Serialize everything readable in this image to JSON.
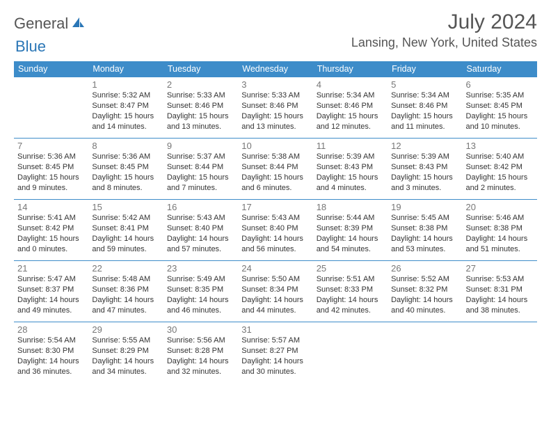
{
  "brand": {
    "part1": "General",
    "part2": "Blue"
  },
  "title": "July 2024",
  "location": "Lansing, New York, United States",
  "colors": {
    "header_bg": "#3d8cc9",
    "header_text": "#ffffff",
    "border": "#3d8cc9",
    "daynum": "#777777",
    "body_text": "#333333",
    "brand_gray": "#555555",
    "brand_blue": "#2a76b6",
    "background": "#ffffff"
  },
  "weekdays": [
    "Sunday",
    "Monday",
    "Tuesday",
    "Wednesday",
    "Thursday",
    "Friday",
    "Saturday"
  ],
  "layout": {
    "first_weekday_index": 1,
    "days_in_month": 31,
    "weeks": 5
  },
  "days": {
    "1": {
      "sunrise": "Sunrise: 5:32 AM",
      "sunset": "Sunset: 8:47 PM",
      "daylight": "Daylight: 15 hours and 14 minutes."
    },
    "2": {
      "sunrise": "Sunrise: 5:33 AM",
      "sunset": "Sunset: 8:46 PM",
      "daylight": "Daylight: 15 hours and 13 minutes."
    },
    "3": {
      "sunrise": "Sunrise: 5:33 AM",
      "sunset": "Sunset: 8:46 PM",
      "daylight": "Daylight: 15 hours and 13 minutes."
    },
    "4": {
      "sunrise": "Sunrise: 5:34 AM",
      "sunset": "Sunset: 8:46 PM",
      "daylight": "Daylight: 15 hours and 12 minutes."
    },
    "5": {
      "sunrise": "Sunrise: 5:34 AM",
      "sunset": "Sunset: 8:46 PM",
      "daylight": "Daylight: 15 hours and 11 minutes."
    },
    "6": {
      "sunrise": "Sunrise: 5:35 AM",
      "sunset": "Sunset: 8:45 PM",
      "daylight": "Daylight: 15 hours and 10 minutes."
    },
    "7": {
      "sunrise": "Sunrise: 5:36 AM",
      "sunset": "Sunset: 8:45 PM",
      "daylight": "Daylight: 15 hours and 9 minutes."
    },
    "8": {
      "sunrise": "Sunrise: 5:36 AM",
      "sunset": "Sunset: 8:45 PM",
      "daylight": "Daylight: 15 hours and 8 minutes."
    },
    "9": {
      "sunrise": "Sunrise: 5:37 AM",
      "sunset": "Sunset: 8:44 PM",
      "daylight": "Daylight: 15 hours and 7 minutes."
    },
    "10": {
      "sunrise": "Sunrise: 5:38 AM",
      "sunset": "Sunset: 8:44 PM",
      "daylight": "Daylight: 15 hours and 6 minutes."
    },
    "11": {
      "sunrise": "Sunrise: 5:39 AM",
      "sunset": "Sunset: 8:43 PM",
      "daylight": "Daylight: 15 hours and 4 minutes."
    },
    "12": {
      "sunrise": "Sunrise: 5:39 AM",
      "sunset": "Sunset: 8:43 PM",
      "daylight": "Daylight: 15 hours and 3 minutes."
    },
    "13": {
      "sunrise": "Sunrise: 5:40 AM",
      "sunset": "Sunset: 8:42 PM",
      "daylight": "Daylight: 15 hours and 2 minutes."
    },
    "14": {
      "sunrise": "Sunrise: 5:41 AM",
      "sunset": "Sunset: 8:42 PM",
      "daylight": "Daylight: 15 hours and 0 minutes."
    },
    "15": {
      "sunrise": "Sunrise: 5:42 AM",
      "sunset": "Sunset: 8:41 PM",
      "daylight": "Daylight: 14 hours and 59 minutes."
    },
    "16": {
      "sunrise": "Sunrise: 5:43 AM",
      "sunset": "Sunset: 8:40 PM",
      "daylight": "Daylight: 14 hours and 57 minutes."
    },
    "17": {
      "sunrise": "Sunrise: 5:43 AM",
      "sunset": "Sunset: 8:40 PM",
      "daylight": "Daylight: 14 hours and 56 minutes."
    },
    "18": {
      "sunrise": "Sunrise: 5:44 AM",
      "sunset": "Sunset: 8:39 PM",
      "daylight": "Daylight: 14 hours and 54 minutes."
    },
    "19": {
      "sunrise": "Sunrise: 5:45 AM",
      "sunset": "Sunset: 8:38 PM",
      "daylight": "Daylight: 14 hours and 53 minutes."
    },
    "20": {
      "sunrise": "Sunrise: 5:46 AM",
      "sunset": "Sunset: 8:38 PM",
      "daylight": "Daylight: 14 hours and 51 minutes."
    },
    "21": {
      "sunrise": "Sunrise: 5:47 AM",
      "sunset": "Sunset: 8:37 PM",
      "daylight": "Daylight: 14 hours and 49 minutes."
    },
    "22": {
      "sunrise": "Sunrise: 5:48 AM",
      "sunset": "Sunset: 8:36 PM",
      "daylight": "Daylight: 14 hours and 47 minutes."
    },
    "23": {
      "sunrise": "Sunrise: 5:49 AM",
      "sunset": "Sunset: 8:35 PM",
      "daylight": "Daylight: 14 hours and 46 minutes."
    },
    "24": {
      "sunrise": "Sunrise: 5:50 AM",
      "sunset": "Sunset: 8:34 PM",
      "daylight": "Daylight: 14 hours and 44 minutes."
    },
    "25": {
      "sunrise": "Sunrise: 5:51 AM",
      "sunset": "Sunset: 8:33 PM",
      "daylight": "Daylight: 14 hours and 42 minutes."
    },
    "26": {
      "sunrise": "Sunrise: 5:52 AM",
      "sunset": "Sunset: 8:32 PM",
      "daylight": "Daylight: 14 hours and 40 minutes."
    },
    "27": {
      "sunrise": "Sunrise: 5:53 AM",
      "sunset": "Sunset: 8:31 PM",
      "daylight": "Daylight: 14 hours and 38 minutes."
    },
    "28": {
      "sunrise": "Sunrise: 5:54 AM",
      "sunset": "Sunset: 8:30 PM",
      "daylight": "Daylight: 14 hours and 36 minutes."
    },
    "29": {
      "sunrise": "Sunrise: 5:55 AM",
      "sunset": "Sunset: 8:29 PM",
      "daylight": "Daylight: 14 hours and 34 minutes."
    },
    "30": {
      "sunrise": "Sunrise: 5:56 AM",
      "sunset": "Sunset: 8:28 PM",
      "daylight": "Daylight: 14 hours and 32 minutes."
    },
    "31": {
      "sunrise": "Sunrise: 5:57 AM",
      "sunset": "Sunset: 8:27 PM",
      "daylight": "Daylight: 14 hours and 30 minutes."
    }
  }
}
